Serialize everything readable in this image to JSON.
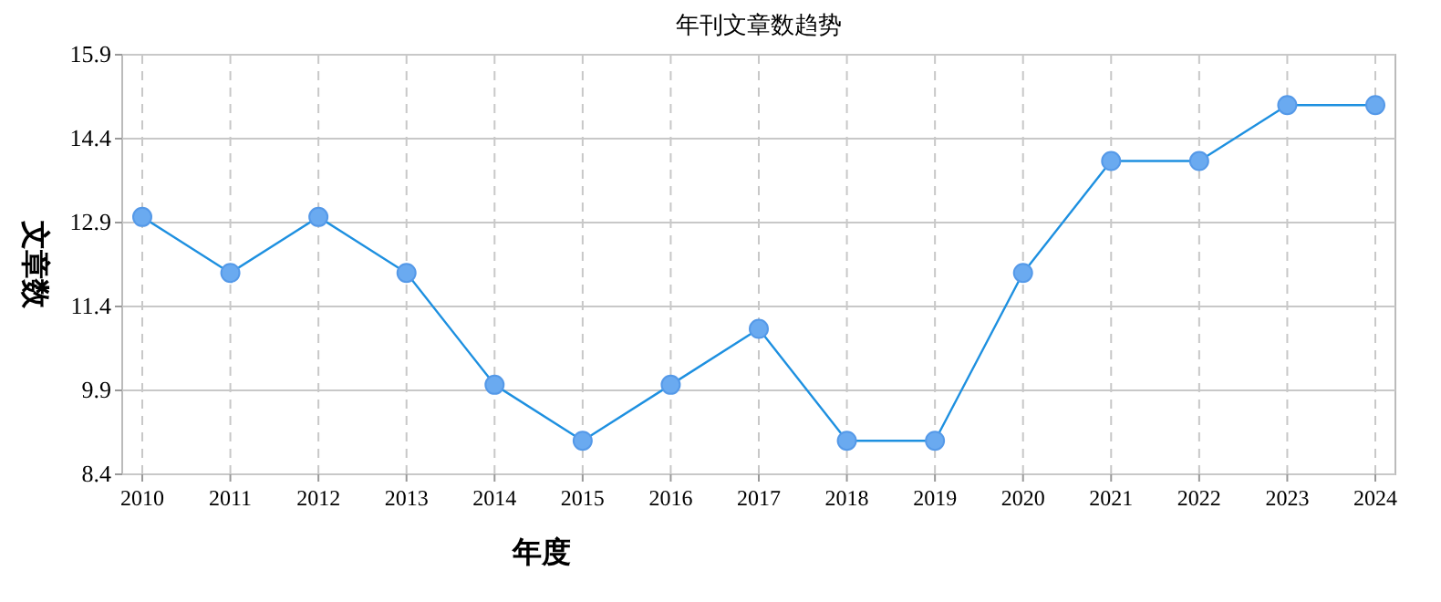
{
  "chart_data": {
    "type": "line",
    "title": "年刊文章数趋势",
    "xlabel": "年度",
    "ylabel": "文章数",
    "categories": [
      "2010",
      "2011",
      "2012",
      "2013",
      "2014",
      "2015",
      "2016",
      "2017",
      "2018",
      "2019",
      "2020",
      "2021",
      "2022",
      "2023",
      "2024"
    ],
    "series": [
      {
        "color": "#1e90e0",
        "values": [
          13,
          12,
          13,
          12,
          10,
          9,
          10,
          11,
          9,
          9,
          12,
          14,
          14,
          15,
          15
        ]
      }
    ],
    "ylim": [
      8.4,
      15.9
    ],
    "yticks": [
      8.4,
      9.9,
      11.4,
      12.9,
      14.4,
      15.9
    ],
    "grid": true,
    "marker": "circle",
    "line_style": "solid"
  }
}
